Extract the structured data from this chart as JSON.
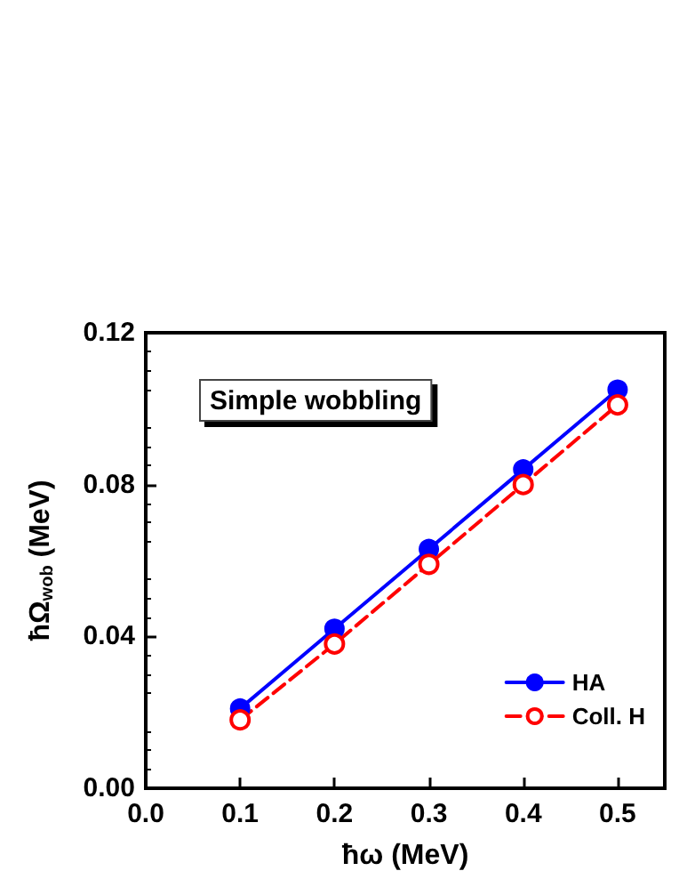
{
  "chart_data": {
    "type": "line",
    "xlabel": "ħω (MeV)",
    "ylabel": "ħΩ$_{wob}$ (MeV)",
    "annotations": [
      "Simple wobbling"
    ],
    "x": [
      0.1,
      0.2,
      0.3,
      0.4,
      0.5
    ],
    "series": [
      {
        "name": "HA",
        "color": "#0000ff",
        "values": [
          0.021,
          0.042,
          0.063,
          0.084,
          0.105
        ],
        "line_style": "solid"
      },
      {
        "name": "Coll. H",
        "color": "#ff0000",
        "values": [
          0.018,
          0.038,
          0.059,
          0.08,
          0.101
        ],
        "line_style": "dashed"
      }
    ],
    "xlim": [
      0,
      0.55
    ],
    "xticks": [
      {
        "value": 0,
        "label": "0.0"
      },
      0.1,
      0.2,
      0.3,
      0.4,
      0.5
    ],
    "ylim": [
      0,
      0.12
    ],
    "yticks": [
      {
        "value": 0,
        "label": "0.00"
      },
      0.04,
      0.08,
      0.12
    ],
    "grid": false,
    "legend": "bottom right",
    "marker": "circle"
  }
}
